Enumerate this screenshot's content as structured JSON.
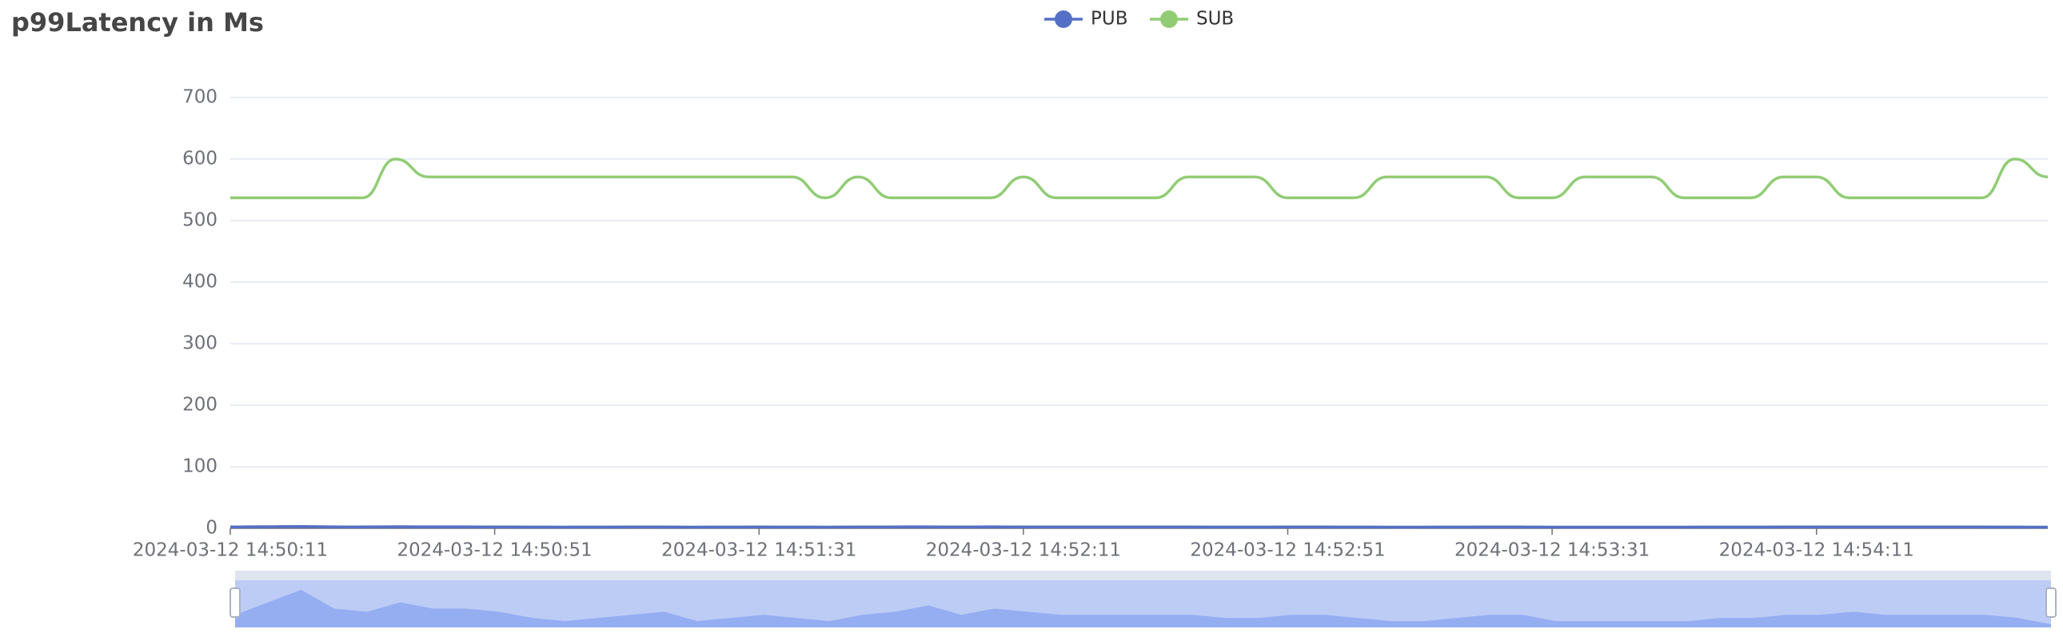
{
  "chart_data": {
    "type": "line",
    "title": "p99Latency in Ms",
    "categories": [
      "2024-03-12 14:50:11",
      null,
      null,
      null,
      null,
      null,
      null,
      null,
      "2024-03-12 14:50:51",
      null,
      null,
      null,
      null,
      null,
      null,
      null,
      "2024-03-12 14:51:31",
      null,
      null,
      null,
      null,
      null,
      null,
      null,
      "2024-03-12 14:52:11",
      null,
      null,
      null,
      null,
      null,
      null,
      null,
      "2024-03-12 14:52:51",
      null,
      null,
      null,
      null,
      null,
      null,
      null,
      "2024-03-12 14:53:31",
      null,
      null,
      null,
      null,
      null,
      null,
      null,
      "2024-03-12 14:54:11",
      null,
      null,
      null,
      null,
      null,
      null,
      null
    ],
    "series": [
      {
        "name": "PUB",
        "color": "#5470c6",
        "values": [
          2.2,
          2.6,
          3.0,
          2.4,
          2.3,
          2.6,
          2.4,
          2.4,
          2.3,
          2.1,
          2.0,
          2.1,
          2.2,
          2.3,
          2.0,
          2.1,
          2.2,
          2.1,
          2.0,
          2.2,
          2.3,
          2.5,
          2.2,
          2.4,
          2.3,
          2.2,
          2.2,
          2.2,
          2.2,
          2.2,
          2.1,
          2.1,
          2.2,
          2.2,
          2.1,
          2.0,
          2.0,
          2.1,
          2.2,
          2.2,
          2.0,
          2.0,
          2.0,
          2.0,
          2.0,
          2.1,
          2.1,
          2.2,
          2.2,
          2.3,
          2.2,
          2.2,
          2.2,
          2.2,
          2.1,
          1.9
        ]
      },
      {
        "name": "SUB",
        "color": "#91cc75",
        "values": [
          537,
          537,
          537,
          537,
          537,
          600,
          571,
          571,
          571,
          571,
          571,
          571,
          571,
          571,
          571,
          571,
          571,
          571,
          537,
          571,
          537,
          537,
          537,
          537,
          571,
          537,
          537,
          537,
          537,
          571,
          571,
          571,
          537,
          537,
          537,
          571,
          571,
          571,
          571,
          537,
          537,
          571,
          571,
          571,
          537,
          537,
          537,
          571,
          571,
          537,
          537,
          537,
          537,
          537,
          600,
          571
        ]
      }
    ],
    "ylim": [
      0,
      700
    ],
    "yticks": [
      0,
      100,
      200,
      300,
      400,
      500,
      600,
      700
    ],
    "grid": true
  }
}
